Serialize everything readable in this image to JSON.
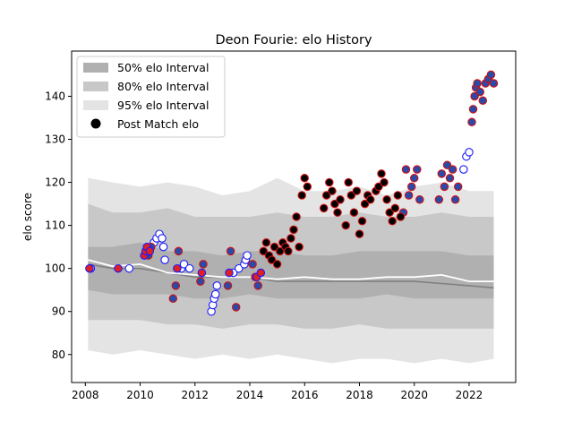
{
  "chart_data": {
    "type": "scatter",
    "title": "Deon Fourie: elo History",
    "xlabel": "",
    "ylabel": "elo score",
    "xlim": [
      2007.5,
      2023.7
    ],
    "ylim": [
      73.5,
      150.5
    ],
    "x_ticks": [
      2008,
      2010,
      2012,
      2014,
      2016,
      2018,
      2020,
      2022
    ],
    "y_ticks": [
      80,
      90,
      100,
      110,
      120,
      130,
      140
    ],
    "grid": false,
    "legend_placement": "top-left",
    "legend": [
      {
        "label": "50% elo Interval",
        "swatch": "#b0b0b0"
      },
      {
        "label": "80% elo Interval",
        "swatch": "#c8c8c8"
      },
      {
        "label": "95% elo Interval",
        "swatch": "#e4e4e4"
      },
      {
        "label": "Post Match elo",
        "swatch": "#000000"
      }
    ],
    "band_x": [
      2008.1,
      2009.0,
      2010.0,
      2011.0,
      2012.0,
      2013.0,
      2014.0,
      2015.0,
      2016.0,
      2017.0,
      2018.0,
      2019.0,
      2020.0,
      2021.0,
      2022.0,
      2022.9
    ],
    "band95": {
      "lower": [
        81,
        80,
        81,
        80,
        79,
        80,
        79,
        80,
        79,
        78,
        79,
        79,
        78,
        79,
        78,
        79
      ],
      "upper": [
        121,
        120,
        119,
        120,
        119,
        117,
        118,
        121,
        118,
        118,
        119,
        117,
        119,
        120,
        118,
        118
      ]
    },
    "band80": {
      "lower": [
        88,
        88,
        88,
        87,
        87,
        86,
        87,
        87,
        86,
        86,
        87,
        86,
        86,
        86,
        86,
        86
      ],
      "upper": [
        115,
        113,
        113,
        114,
        112,
        112,
        112,
        113,
        112,
        112,
        113,
        112,
        112,
        113,
        112,
        112
      ]
    },
    "band50": {
      "lower": [
        95,
        94,
        94,
        94,
        93,
        93,
        94,
        93,
        93,
        93,
        93,
        94,
        93,
        93,
        93,
        93
      ],
      "upper": [
        105,
        105,
        106,
        104,
        104,
        103,
        104,
        104,
        103,
        103,
        104,
        104,
        104,
        104,
        103,
        103
      ]
    },
    "median_line": {
      "color": "#808080",
      "x": [
        2008.1,
        2009.0,
        2010.0,
        2011.0,
        2012.0,
        2013.0,
        2014.0,
        2015.0,
        2016.0,
        2017.0,
        2018.0,
        2019.0,
        2020.0,
        2021.0,
        2022.0,
        2022.9
      ],
      "y": [
        101,
        100,
        100,
        99,
        98,
        98,
        98,
        97,
        97,
        97,
        97,
        97,
        97,
        96.5,
        96,
        95.5
      ]
    },
    "mean_line": {
      "color": "#ffffff",
      "x": [
        2008.1,
        2009.0,
        2010.0,
        2011.0,
        2012.0,
        2013.0,
        2014.0,
        2015.0,
        2016.0,
        2017.0,
        2018.0,
        2019.0,
        2020.0,
        2021.0,
        2022.0,
        2022.9
      ],
      "y": [
        102,
        100.5,
        101,
        99,
        98.5,
        98,
        98,
        97.5,
        98,
        97.5,
        97.5,
        98,
        98,
        98.5,
        97,
        97
      ]
    },
    "series": [
      {
        "name": "Post Match elo",
        "style": "white-blue",
        "fill": "#ffffff",
        "edge": "#1a1aff",
        "x": [
          2008.2,
          2009.6,
          2010.5,
          2010.6,
          2010.7,
          2010.8,
          2010.85,
          2010.9,
          2011.5,
          2011.6,
          2011.8,
          2012.6,
          2012.65,
          2012.7,
          2012.75,
          2012.8,
          2013.4,
          2013.6,
          2013.8,
          2013.85,
          2013.9,
          2021.8,
          2021.9,
          2022.0
        ],
        "y": [
          100,
          100,
          106,
          107,
          108,
          107,
          105,
          102,
          100,
          101,
          100,
          90,
          91.5,
          93,
          94,
          96,
          99,
          100,
          101,
          102,
          103,
          123,
          126,
          127
        ]
      },
      {
        "name": "Post Match elo",
        "style": "blue-red",
        "fill": "#2b4aa8",
        "edge": "#d01010",
        "x": [
          2010.3,
          2010.4,
          2011.2,
          2011.3,
          2011.4,
          2012.2,
          2012.3,
          2013.2,
          2013.3,
          2013.5,
          2014.1,
          2014.2,
          2014.3,
          2019.6,
          2019.7,
          2019.8,
          2019.9,
          2020.0,
          2020.1,
          2020.2,
          2020.9,
          2021.0,
          2021.1,
          2021.2,
          2021.3,
          2021.4,
          2021.5,
          2021.6,
          2022.1,
          2022.15,
          2022.2,
          2022.25,
          2022.3,
          2022.4,
          2022.5,
          2022.6,
          2022.7,
          2022.8,
          2022.9
        ],
        "y": [
          103,
          105,
          93,
          96,
          104,
          97,
          101,
          96,
          104,
          91,
          101,
          98,
          96,
          113,
          123,
          117,
          119,
          121,
          123,
          116,
          116,
          122,
          119,
          124,
          121,
          123,
          116,
          119,
          134,
          137,
          140,
          142,
          143,
          141,
          139,
          143,
          144,
          145,
          143
        ]
      },
      {
        "name": "Post Match elo",
        "style": "red-blue",
        "fill": "#e02020",
        "edge": "#1a1aff",
        "x": [
          2008.15,
          2009.2,
          2010.15,
          2010.2,
          2010.25,
          2010.35,
          2011.35,
          2012.25,
          2013.25,
          2014.25,
          2014.4
        ],
        "y": [
          100,
          100,
          103,
          104,
          105,
          104,
          100,
          99,
          99,
          98,
          99
        ]
      },
      {
        "name": "Post Match elo",
        "style": "black-red",
        "fill": "#000000",
        "edge": "#d01010",
        "x": [
          2014.5,
          2014.6,
          2014.7,
          2014.8,
          2014.9,
          2015.0,
          2015.1,
          2015.2,
          2015.3,
          2015.4,
          2015.5,
          2015.6,
          2015.7,
          2015.8,
          2015.9,
          2016.0,
          2016.1,
          2016.8,
          2016.9,
          2017.0,
          2017.1,
          2017.2,
          2017.3,
          2017.5,
          2017.6,
          2017.7,
          2017.8,
          2017.9,
          2018.0,
          2018.1,
          2018.2,
          2018.3,
          2018.4,
          2018.6,
          2018.7,
          2018.8,
          2018.9,
          2019.0,
          2019.1,
          2019.2,
          2019.3,
          2019.4,
          2019.5,
          2016.7
        ],
        "y": [
          104,
          106,
          103,
          102,
          105,
          101,
          104,
          106,
          105,
          104,
          107,
          109,
          112,
          105,
          117,
          121,
          119,
          117,
          120,
          118,
          115,
          113,
          116,
          110,
          120,
          117,
          113,
          118,
          108,
          111,
          115,
          117,
          116,
          118,
          119,
          122,
          120,
          116,
          113,
          111,
          114,
          117,
          112,
          114
        ]
      }
    ]
  }
}
